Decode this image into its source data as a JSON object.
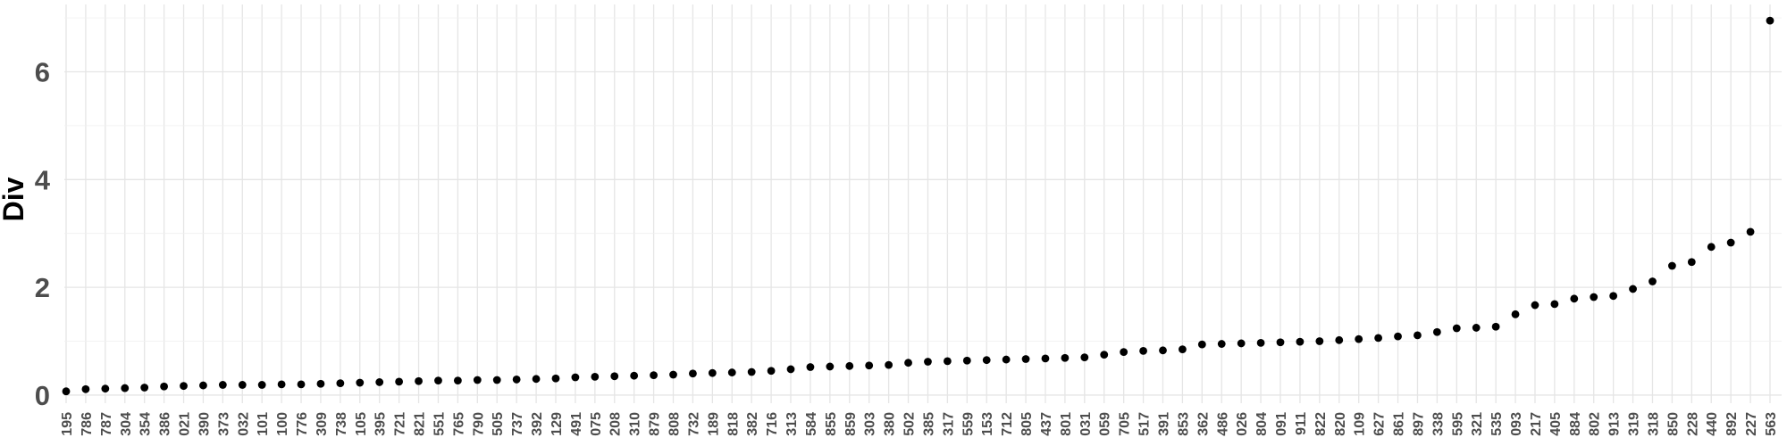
{
  "chart_data": {
    "type": "scatter",
    "title": "",
    "xlabel": "",
    "ylabel": "Div",
    "ylim": [
      -0.15,
      7.25
    ],
    "yticks": [
      0,
      2,
      4,
      6
    ],
    "grid": true,
    "legend": "none",
    "colors": {
      "point": "#000000",
      "tick_text": "#4d4d4d",
      "label_text": "#000000",
      "grid_major": "#e5e5e5",
      "grid_minor": "#f0f0f0"
    },
    "categories": [
      "195",
      "786",
      "787",
      "304",
      "354",
      "386",
      "021",
      "390",
      "373",
      "032",
      "101",
      "100",
      "776",
      "309",
      "738",
      "105",
      "395",
      "721",
      "821",
      "551",
      "765",
      "790",
      "505",
      "737",
      "392",
      "129",
      "491",
      "075",
      "208",
      "310",
      "879",
      "808",
      "732",
      "189",
      "818",
      "382",
      "716",
      "313",
      "584",
      "855",
      "859",
      "303",
      "380",
      "502",
      "385",
      "317",
      "559",
      "153",
      "712",
      "805",
      "437",
      "801",
      "031",
      "059",
      "705",
      "517",
      "391",
      "853",
      "362",
      "486",
      "026",
      "804",
      "091",
      "911",
      "822",
      "820",
      "109",
      "627",
      "861",
      "897",
      "338",
      "595",
      "321",
      "535",
      "093",
      "217",
      "405",
      "884",
      "802",
      "913",
      "319",
      "318",
      "850",
      "228",
      "440",
      "892",
      "227",
      "563"
    ],
    "values": [
      0.07,
      0.11,
      0.12,
      0.13,
      0.14,
      0.16,
      0.17,
      0.18,
      0.19,
      0.19,
      0.19,
      0.2,
      0.2,
      0.21,
      0.22,
      0.23,
      0.24,
      0.25,
      0.26,
      0.27,
      0.27,
      0.28,
      0.28,
      0.29,
      0.3,
      0.31,
      0.33,
      0.34,
      0.35,
      0.36,
      0.37,
      0.38,
      0.4,
      0.41,
      0.42,
      0.43,
      0.45,
      0.48,
      0.52,
      0.53,
      0.54,
      0.55,
      0.56,
      0.6,
      0.62,
      0.63,
      0.64,
      0.65,
      0.66,
      0.67,
      0.68,
      0.69,
      0.7,
      0.75,
      0.8,
      0.82,
      0.83,
      0.85,
      0.94,
      0.95,
      0.96,
      0.97,
      0.98,
      0.99,
      1.0,
      1.02,
      1.04,
      1.06,
      1.09,
      1.11,
      1.17,
      1.24,
      1.25,
      1.27,
      1.5,
      1.67,
      1.69,
      1.79,
      1.82,
      1.84,
      1.97,
      2.11,
      2.4,
      2.47,
      2.75,
      2.83,
      3.03,
      6.95
    ]
  }
}
